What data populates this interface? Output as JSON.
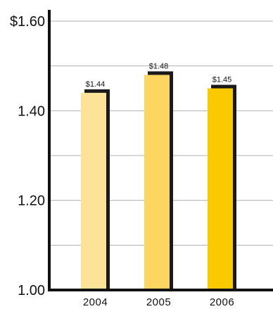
{
  "chart_data": {
    "type": "bar",
    "categories": [
      "2004",
      "2005",
      "2006"
    ],
    "values": [
      1.44,
      1.48,
      1.45
    ],
    "data_labels": [
      "$1.44",
      "$1.48",
      "$1.45"
    ],
    "ylim": [
      1.0,
      1.6
    ],
    "yticks": [
      {
        "value": 1.0,
        "label": "1.00"
      },
      {
        "value": 1.2,
        "label": "1.20"
      },
      {
        "value": 1.4,
        "label": "1.40"
      },
      {
        "value": 1.6,
        "label": "$1.60"
      }
    ],
    "gridlines": [
      1.1,
      1.2,
      1.3,
      1.4,
      1.5,
      1.6
    ],
    "grid": true,
    "legend": "none",
    "title": "",
    "xlabel": "",
    "ylabel": ""
  },
  "colors": {
    "bars": [
      "#fde398",
      "#fdd661",
      "#fbc900"
    ],
    "bar_shadow": "#1a1a1a",
    "axis": "#111111",
    "grid": "#b0b0b0"
  }
}
